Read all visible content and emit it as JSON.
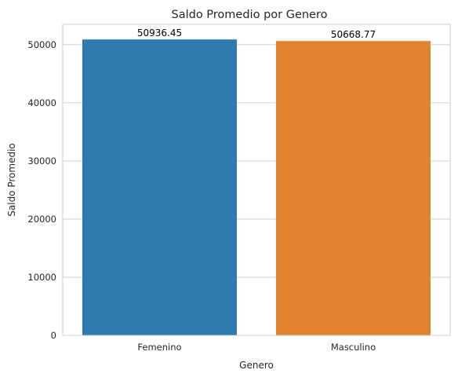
{
  "chart_data": {
    "type": "bar",
    "title": "Saldo Promedio por Genero",
    "xlabel": "Genero",
    "ylabel": "Saldo Promedio",
    "categories": [
      "Femenino",
      "Masculino"
    ],
    "values": [
      50936.45,
      50668.77
    ],
    "value_labels": [
      "50936.45",
      "50668.77"
    ],
    "colors": [
      "#2e7bb0",
      "#e1822e"
    ],
    "ylim": [
      0,
      53500
    ],
    "yticks": [
      0,
      10000,
      20000,
      30000,
      40000,
      50000
    ],
    "grid": "horizontal",
    "legend": "none"
  }
}
